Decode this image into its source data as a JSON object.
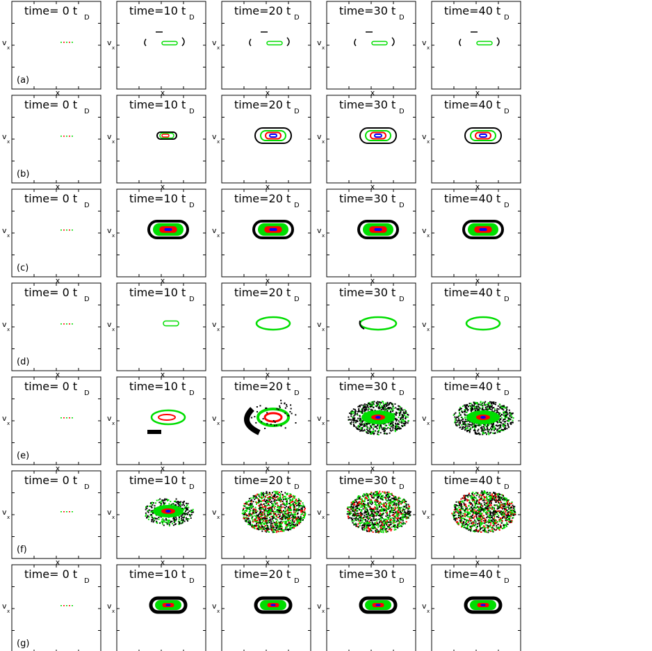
{
  "figure": {
    "rows": [
      {
        "label": "(a)"
      },
      {
        "label": "(b)"
      },
      {
        "label": "(c)"
      },
      {
        "label": "(d)"
      },
      {
        "label": "(e)"
      },
      {
        "label": "(f)"
      },
      {
        "label": "(g)"
      }
    ],
    "columns": [
      {
        "title": "time=  0 t",
        "subscript": "D"
      },
      {
        "title": "time=10 t",
        "subscript": "D"
      },
      {
        "title": "time=20 t",
        "subscript": "D"
      },
      {
        "title": "time=30 t",
        "subscript": "D"
      },
      {
        "title": "time=40 t",
        "subscript": "D"
      }
    ],
    "xlabel": "x",
    "ylabel": "v",
    "ylabel_sub": "x",
    "colors": {
      "outer": "#000000",
      "mid": "#00dd00",
      "inner": "#ff0000",
      "core": "#0000ff"
    }
  }
}
